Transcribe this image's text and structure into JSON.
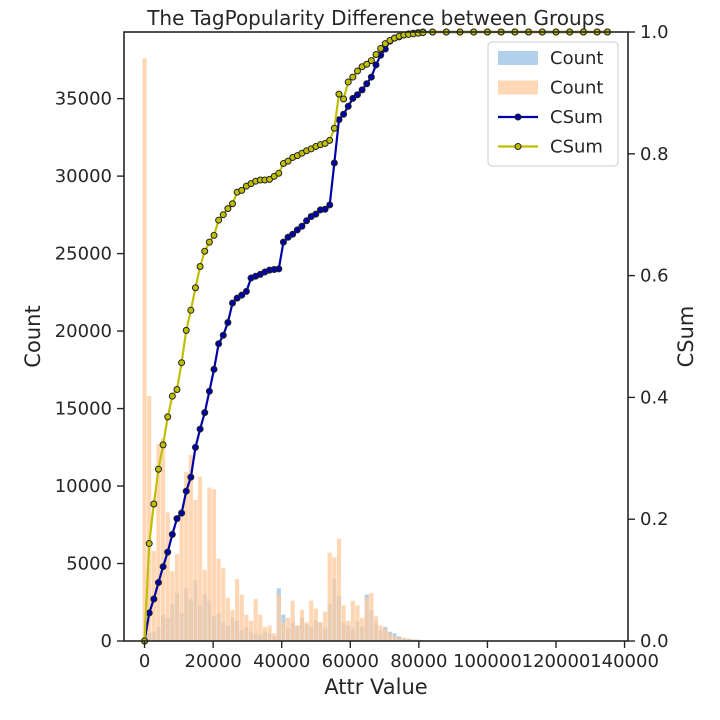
{
  "chart_data": {
    "type": "bar+line",
    "title": "The TagPopularity Difference between Groups",
    "xlabel": "Attr Value",
    "ylabel_left": "Count",
    "ylabel_right": "CSum",
    "xlim": [
      -6000,
      141000
    ],
    "ylim_left": [
      0,
      39300
    ],
    "ylim_right": [
      0,
      1.0
    ],
    "x_ticks": [
      0,
      20000,
      40000,
      60000,
      80000,
      100000,
      120000,
      140000
    ],
    "y_left_ticks": [
      0,
      5000,
      10000,
      15000,
      20000,
      25000,
      30000,
      35000
    ],
    "y_right_ticks": [
      0.0,
      0.2,
      0.4,
      0.6,
      0.8,
      1.0
    ],
    "y_right_tick_labels": [
      "0.0",
      "0.2",
      "0.4",
      "0.6",
      "0.8",
      "1.0"
    ],
    "grid": false,
    "legend_position": "top-right",
    "colors": {
      "blue_bars": "#a6c8e6",
      "orange_bars": "#ffc99b",
      "blue_line": "#0000aa",
      "yellow_line": "#bfbf00",
      "marker_edge": "#222222",
      "axis": "#262626"
    },
    "bar_bin_width": 1350,
    "series": [
      {
        "name": "Count",
        "kind": "bar",
        "color": "#a6c8e6",
        "x": [
          0,
          1350,
          2700,
          4050,
          5400,
          6750,
          8100,
          9450,
          10800,
          12150,
          13500,
          14850,
          16200,
          17550,
          18900,
          20250,
          21600,
          22950,
          24300,
          25650,
          27000,
          28350,
          29700,
          31050,
          32400,
          33750,
          35100,
          36450,
          37800,
          39150,
          40500,
          41850,
          43200,
          44550,
          45900,
          47250,
          48600,
          49950,
          51300,
          52650,
          54000,
          55350,
          56700,
          58050,
          59400,
          60750,
          62100,
          63450,
          64800,
          66150,
          67500,
          68850,
          70200,
          71550,
          72900,
          74250,
          75600,
          77000,
          78400,
          79800
        ],
        "values": [
          300,
          500,
          600,
          900,
          1700,
          1500,
          2400,
          3100,
          1800,
          3400,
          2700,
          3900,
          2300,
          3000,
          2600,
          1600,
          1800,
          1200,
          1000,
          1500,
          1300,
          700,
          900,
          600,
          500,
          400,
          600,
          500,
          300,
          3400,
          1700,
          800,
          1200,
          1000,
          1500,
          1100,
          900,
          1300,
          1200,
          800,
          2400,
          4000,
          2900,
          1200,
          1000,
          800,
          1300,
          900,
          3000,
          2000,
          1200,
          700,
          900,
          600,
          500,
          300,
          200,
          150,
          100,
          80
        ]
      },
      {
        "name": "Count",
        "kind": "bar",
        "color": "#ffc99b",
        "x": [
          0,
          1350,
          2700,
          4050,
          5400,
          6750,
          8100,
          9450,
          10800,
          12150,
          13500,
          14850,
          16200,
          17550,
          18900,
          20250,
          21600,
          22950,
          24300,
          25650,
          27000,
          28350,
          29700,
          31050,
          32400,
          33750,
          35100,
          36450,
          37800,
          39150,
          40500,
          41850,
          43200,
          44550,
          45900,
          47250,
          48600,
          49950,
          51300,
          52650,
          54000,
          55350,
          56700,
          58050,
          59400,
          60750,
          62100,
          63450,
          64800,
          66150,
          67500,
          68850,
          70200,
          71550,
          72900,
          74250,
          75600,
          77000,
          78400,
          79800,
          81200,
          82600,
          84000
        ],
        "values": [
          37600,
          15800,
          5800,
          12700,
          13100,
          8300,
          4500,
          5600,
          8500,
          10900,
          12000,
          9100,
          10600,
          4600,
          9900,
          9800,
          5300,
          4700,
          2800,
          2000,
          4000,
          3000,
          1700,
          1300,
          2700,
          1700,
          900,
          1000,
          500,
          3000,
          1200,
          1500,
          2600,
          1000,
          2000,
          1200,
          2600,
          2100,
          1200,
          1900,
          5700,
          5400,
          6600,
          2300,
          1300,
          2600,
          2300,
          1500,
          2800,
          3100,
          1600,
          1000,
          800,
          500,
          300,
          200,
          200,
          150,
          100,
          80,
          60,
          40,
          30
        ]
      },
      {
        "name": "CSum",
        "kind": "line",
        "color": "#0000aa",
        "x": [
          0,
          1350,
          2700,
          4050,
          5400,
          6750,
          8100,
          9450,
          10800,
          12150,
          13500,
          14850,
          16200,
          17550,
          18900,
          20250,
          21600,
          22950,
          24300,
          25650,
          27000,
          28350,
          29700,
          31050,
          32400,
          33750,
          35100,
          36450,
          37800,
          39150,
          40500,
          41850,
          43200,
          44550,
          45900,
          47250,
          48600,
          49950,
          51300,
          52650,
          54000,
          55350,
          56700,
          58050,
          59400,
          60750,
          62100,
          63450,
          64800,
          66150,
          67500,
          68850,
          70200,
          71550,
          72900,
          74250,
          75600,
          77000,
          78400,
          79800,
          81200,
          84000,
          88000,
          92000,
          96000,
          100000,
          104000,
          108000,
          112000,
          116000,
          120000,
          124000,
          128000,
          132000,
          135000
        ],
        "values": [
          0.0,
          0.046,
          0.069,
          0.096,
          0.122,
          0.146,
          0.175,
          0.201,
          0.21,
          0.246,
          0.269,
          0.318,
          0.348,
          0.375,
          0.41,
          0.446,
          0.488,
          0.502,
          0.523,
          0.555,
          0.563,
          0.568,
          0.574,
          0.596,
          0.599,
          0.602,
          0.606,
          0.609,
          0.61,
          0.611,
          0.655,
          0.663,
          0.668,
          0.675,
          0.681,
          0.69,
          0.697,
          0.701,
          0.708,
          0.709,
          0.716,
          0.785,
          0.856,
          0.865,
          0.878,
          0.891,
          0.897,
          0.905,
          0.915,
          0.926,
          0.946,
          0.962,
          0.972,
          0.985,
          0.99,
          0.992,
          0.995,
          0.997,
          0.998,
          0.999,
          1.0,
          1.0,
          1.0,
          1.0,
          1.0,
          1.0,
          1.0,
          1.0,
          1.0,
          1.0,
          1.0,
          1.0,
          1.0,
          1.0,
          1.0
        ]
      },
      {
        "name": "CSum",
        "kind": "line",
        "color": "#bfbf00",
        "x": [
          0,
          1350,
          2700,
          4050,
          5400,
          6750,
          8100,
          9450,
          10800,
          12150,
          13500,
          14850,
          16200,
          17550,
          18900,
          20250,
          21600,
          22950,
          24300,
          25650,
          27000,
          28350,
          29700,
          31050,
          32400,
          33750,
          35100,
          36450,
          37800,
          39150,
          40500,
          41850,
          43200,
          44550,
          45900,
          47250,
          48600,
          49950,
          51300,
          52650,
          54000,
          55350,
          56700,
          58050,
          59400,
          60750,
          62100,
          63450,
          64800,
          66150,
          67500,
          68850,
          70200,
          71550,
          72900,
          74250,
          75600,
          77000,
          78400,
          79800,
          81200,
          84000,
          88000,
          92000,
          96000,
          100000,
          104000,
          108000,
          112000,
          116000,
          120000,
          124000,
          128000,
          132000,
          135000
        ],
        "values": [
          0.0,
          0.16,
          0.225,
          0.282,
          0.322,
          0.368,
          0.402,
          0.413,
          0.457,
          0.51,
          0.543,
          0.58,
          0.615,
          0.64,
          0.655,
          0.666,
          0.691,
          0.7,
          0.71,
          0.718,
          0.737,
          0.74,
          0.747,
          0.751,
          0.755,
          0.757,
          0.757,
          0.758,
          0.763,
          0.768,
          0.784,
          0.788,
          0.794,
          0.797,
          0.801,
          0.805,
          0.808,
          0.812,
          0.815,
          0.817,
          0.822,
          0.842,
          0.898,
          0.89,
          0.918,
          0.926,
          0.936,
          0.943,
          0.947,
          0.953,
          0.963,
          0.973,
          0.981,
          0.986,
          0.99,
          0.993,
          0.995,
          0.996,
          0.997,
          0.998,
          0.999,
          1.0,
          1.0,
          1.0,
          1.0,
          1.0,
          1.0,
          1.0,
          1.0,
          1.0,
          1.0,
          1.0,
          1.0,
          1.0,
          1.0
        ]
      }
    ]
  }
}
